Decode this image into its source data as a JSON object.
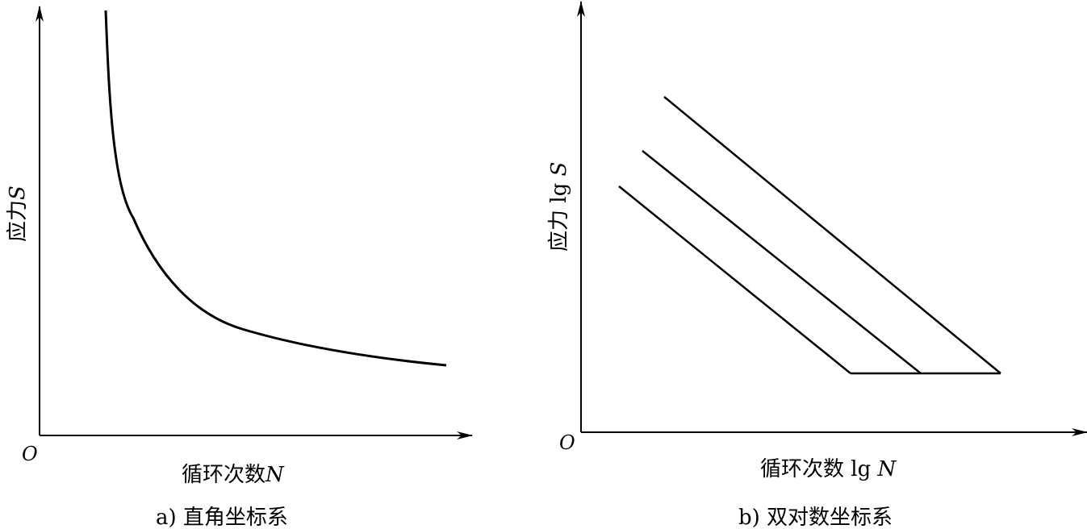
{
  "panel_a": {
    "y_label": "应力",
    "y_var": "S",
    "x_label": "循环次数",
    "x_var": "N",
    "origin": "O",
    "caption": "a) 直角坐标系"
  },
  "panel_b": {
    "y_label": "应力 lg",
    "y_var": "S",
    "x_label": "循环次数 lg",
    "x_var": "N",
    "origin": "O",
    "caption": "b) 双对数坐标系"
  },
  "colors": {
    "stroke": "#000000",
    "background": "#ffffff"
  }
}
